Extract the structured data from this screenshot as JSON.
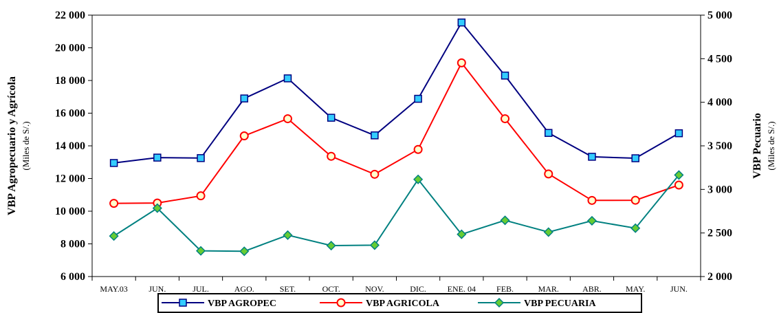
{
  "chart_data": {
    "type": "line",
    "categories": [
      "MAY.03",
      "JUN.",
      "JUL.",
      "AGO.",
      "SET.",
      "OCT.",
      "NOV.",
      "DIC.",
      "ENE. 04",
      "FEB.",
      "MAR.",
      "ABR.",
      "MAY.",
      "JUN."
    ],
    "left_axis": {
      "title": "VBP Agropecuario y Agrícola",
      "unit": "(Miles de S/.)",
      "range": [
        6000,
        22000
      ],
      "ticks": [
        "6 000",
        "8 000",
        "10 000",
        "12 000",
        "14 000",
        "16 000",
        "18 000",
        "20 000",
        "22 000"
      ]
    },
    "right_axis": {
      "title": "VBP Pecuario",
      "unit": "(Miles de S/.)",
      "range": [
        2000,
        5000
      ],
      "ticks": [
        "2 000",
        "2 500",
        "3 000",
        "3 500",
        "4 000",
        "4 500",
        "5 000"
      ]
    },
    "series": [
      {
        "name": "VBP AGROPEC",
        "axis": "left",
        "color": "#000080",
        "marker_fill": "#33ccff",
        "marker": "square",
        "values": [
          12950,
          13280,
          13250,
          16900,
          18130,
          15720,
          14640,
          16880,
          21550,
          18300,
          14790,
          13330,
          13240,
          14770
        ]
      },
      {
        "name": "VBP AGRICOLA",
        "axis": "left",
        "color": "#ff0000",
        "marker_fill": "#ffffcc",
        "marker": "circle",
        "values": [
          10480,
          10500,
          10940,
          14610,
          15660,
          13360,
          12260,
          13780,
          19080,
          15660,
          12280,
          10660,
          10670,
          11600
        ]
      },
      {
        "name": "VBP PECUARIA",
        "axis": "right",
        "color": "#008080",
        "marker_fill": "#66cc33",
        "marker": "diamond",
        "values": [
          2465,
          2785,
          2295,
          2290,
          2475,
          2355,
          2360,
          3115,
          2485,
          2645,
          2510,
          2640,
          2555,
          3165
        ]
      }
    ],
    "legend_position": "bottom",
    "grid": false
  }
}
